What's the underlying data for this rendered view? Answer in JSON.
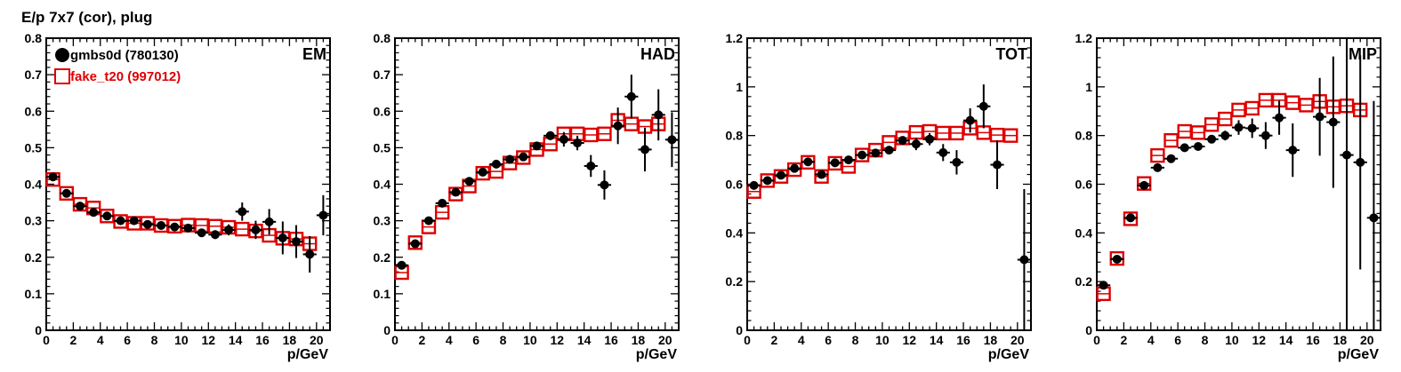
{
  "chart_data": [
    {
      "type": "scatter",
      "title": "E/p 7x7 (cor), plug",
      "panel_label": "EM",
      "xlabel": "p/GeV",
      "xlim": [
        0,
        21
      ],
      "ylim": [
        0,
        0.8
      ],
      "yticks": [
        0,
        0.1,
        0.2,
        0.3,
        0.4,
        0.5,
        0.6,
        0.7,
        0.8
      ],
      "ytick_labels": [
        "0",
        "0.1",
        "0.2",
        "0.3",
        "0.4",
        "0.5",
        "0.6",
        "0.7",
        "0.8"
      ],
      "legend": [
        "gmbs0d (780130)",
        "fake_t20 (997012)"
      ],
      "series": [
        {
          "name": "gmbs0d (780130)",
          "color": "#000000",
          "marker": "circle",
          "x": [
            0.5,
            1.5,
            2.5,
            3.5,
            4.5,
            5.5,
            6.5,
            7.5,
            8.5,
            9.5,
            10.5,
            11.5,
            12.5,
            13.5,
            14.5,
            15.5,
            16.5,
            17.5,
            18.5,
            19.5,
            20.5
          ],
          "y": [
            0.42,
            0.375,
            0.34,
            0.323,
            0.313,
            0.3,
            0.3,
            0.29,
            0.287,
            0.283,
            0.28,
            0.267,
            0.262,
            0.275,
            0.325,
            0.275,
            0.297,
            0.253,
            0.243,
            0.208,
            0.315
          ],
          "yerr": [
            0.005,
            0.005,
            0.005,
            0.005,
            0.005,
            0.005,
            0.005,
            0.006,
            0.007,
            0.008,
            0.009,
            0.01,
            0.012,
            0.015,
            0.025,
            0.025,
            0.035,
            0.045,
            0.045,
            0.05,
            0.055
          ]
        },
        {
          "name": "fake_t20 (997012)",
          "color": "#dd0000",
          "marker": "open-square",
          "x": [
            0.5,
            1.5,
            2.5,
            3.5,
            4.5,
            5.5,
            6.5,
            7.5,
            8.5,
            9.5,
            10.5,
            11.5,
            12.5,
            13.5,
            14.5,
            15.5,
            16.5,
            17.5,
            18.5,
            19.5
          ],
          "y": [
            0.413,
            0.375,
            0.345,
            0.335,
            0.313,
            0.298,
            0.293,
            0.293,
            0.287,
            0.285,
            0.288,
            0.287,
            0.285,
            0.282,
            0.277,
            0.272,
            0.26,
            0.252,
            0.25,
            0.237
          ]
        }
      ]
    },
    {
      "type": "scatter",
      "panel_label": "HAD",
      "xlabel": "p/GeV",
      "xlim": [
        0,
        21
      ],
      "ylim": [
        0,
        0.8
      ],
      "yticks": [
        0,
        0.1,
        0.2,
        0.3,
        0.4,
        0.5,
        0.6,
        0.7,
        0.8
      ],
      "ytick_labels": [
        "0",
        "0.1",
        "0.2",
        "0.3",
        "0.4",
        "0.5",
        "0.6",
        "0.7",
        "0.8"
      ],
      "series": [
        {
          "name": "gmbs0d (780130)",
          "color": "#000000",
          "marker": "circle",
          "x": [
            0.5,
            1.5,
            2.5,
            3.5,
            4.5,
            5.5,
            6.5,
            7.5,
            8.5,
            9.5,
            10.5,
            11.5,
            12.5,
            13.5,
            14.5,
            15.5,
            16.5,
            17.5,
            18.5,
            19.5,
            20.5
          ],
          "y": [
            0.178,
            0.237,
            0.3,
            0.348,
            0.378,
            0.408,
            0.433,
            0.455,
            0.468,
            0.475,
            0.505,
            0.533,
            0.523,
            0.513,
            0.45,
            0.398,
            0.56,
            0.64,
            0.495,
            0.59,
            0.522
          ],
          "yerr": [
            0.005,
            0.005,
            0.005,
            0.005,
            0.005,
            0.005,
            0.006,
            0.007,
            0.008,
            0.009,
            0.01,
            0.012,
            0.02,
            0.02,
            0.03,
            0.04,
            0.05,
            0.06,
            0.06,
            0.07,
            0.075
          ]
        },
        {
          "name": "fake_t20 (997012)",
          "color": "#dd0000",
          "marker": "open-square",
          "x": [
            0.5,
            1.5,
            2.5,
            3.5,
            4.5,
            5.5,
            6.5,
            7.5,
            8.5,
            9.5,
            10.5,
            11.5,
            12.5,
            13.5,
            14.5,
            15.5,
            16.5,
            17.5,
            18.5,
            19.5
          ],
          "y": [
            0.158,
            0.24,
            0.283,
            0.323,
            0.373,
            0.395,
            0.43,
            0.435,
            0.458,
            0.473,
            0.495,
            0.51,
            0.538,
            0.538,
            0.535,
            0.538,
            0.575,
            0.565,
            0.558,
            0.565
          ]
        }
      ]
    },
    {
      "type": "scatter",
      "panel_label": "TOT",
      "xlabel": "p/GeV",
      "xlim": [
        0,
        21
      ],
      "ylim": [
        0,
        1.2
      ],
      "yticks": [
        0,
        0.2,
        0.4,
        0.6,
        0.8,
        1.0,
        1.2
      ],
      "ytick_labels": [
        "0",
        "0.2",
        "0.4",
        "0.6",
        "0.8",
        "1",
        "1.2"
      ],
      "series": [
        {
          "name": "gmbs0d (780130)",
          "color": "#000000",
          "marker": "circle",
          "x": [
            0.5,
            1.5,
            2.5,
            3.5,
            4.5,
            5.5,
            6.5,
            7.5,
            8.5,
            9.5,
            10.5,
            11.5,
            12.5,
            13.5,
            14.5,
            15.5,
            16.5,
            17.5,
            18.5,
            19.5,
            20.5
          ],
          "y": [
            0.595,
            0.615,
            0.637,
            0.665,
            0.692,
            0.64,
            0.688,
            0.7,
            0.72,
            0.728,
            0.74,
            0.78,
            0.765,
            0.785,
            0.73,
            0.69,
            0.862,
            0.92,
            0.68,
            null,
            0.29
          ],
          "yerr": [
            0.01,
            0.008,
            0.008,
            0.008,
            0.008,
            0.008,
            0.008,
            0.008,
            0.01,
            0.01,
            0.012,
            0.015,
            0.025,
            0.025,
            0.035,
            0.05,
            0.05,
            0.09,
            0.1,
            0,
            0.29
          ]
        },
        {
          "name": "fake_t20 (997012)",
          "color": "#dd0000",
          "marker": "open-square",
          "x": [
            0.5,
            1.5,
            2.5,
            3.5,
            4.5,
            5.5,
            6.5,
            7.5,
            8.5,
            9.5,
            10.5,
            11.5,
            12.5,
            13.5,
            14.5,
            15.5,
            16.5,
            17.5,
            18.5,
            19.5
          ],
          "y": [
            0.57,
            0.615,
            0.632,
            0.66,
            0.69,
            0.632,
            0.686,
            0.673,
            0.72,
            0.74,
            0.772,
            0.79,
            0.813,
            0.817,
            0.81,
            0.81,
            0.83,
            0.812,
            0.802,
            0.8
          ]
        }
      ]
    },
    {
      "type": "scatter",
      "panel_label": "MIP",
      "xlabel": "p/GeV",
      "xlim": [
        0,
        21
      ],
      "ylim": [
        0,
        1.2
      ],
      "yticks": [
        0,
        0.2,
        0.4,
        0.6,
        0.8,
        1.0,
        1.2
      ],
      "ytick_labels": [
        "0",
        "0.2",
        "0.4",
        "0.6",
        "0.8",
        "1",
        "1.2"
      ],
      "series": [
        {
          "name": "gmbs0d (780130)",
          "color": "#000000",
          "marker": "circle",
          "x": [
            0.5,
            1.5,
            2.5,
            3.5,
            4.5,
            5.5,
            6.5,
            7.5,
            8.5,
            9.5,
            10.5,
            11.5,
            12.5,
            13.5,
            14.5,
            15.5,
            16.5,
            17.5,
            18.5,
            19.5,
            20.5
          ],
          "y": [
            0.185,
            0.292,
            0.462,
            0.595,
            0.668,
            0.705,
            0.75,
            0.755,
            0.785,
            0.8,
            0.833,
            0.83,
            0.8,
            0.873,
            0.74,
            null,
            0.877,
            0.855,
            0.72,
            0.69,
            0.462
          ],
          "yerr": [
            0.005,
            0.005,
            0.005,
            0.008,
            0.008,
            0.01,
            0.01,
            0.012,
            0.015,
            0.02,
            0.03,
            0.04,
            0.055,
            0.07,
            0.11,
            0,
            0.16,
            0.27,
            0.72,
            0.44,
            0.48
          ]
        },
        {
          "name": "fake_t20 (997012)",
          "color": "#dd0000",
          "marker": "open-square",
          "x": [
            0.5,
            1.5,
            2.5,
            3.5,
            4.5,
            5.5,
            6.5,
            7.5,
            8.5,
            9.5,
            10.5,
            11.5,
            12.5,
            13.5,
            14.5,
            15.5,
            16.5,
            17.5,
            18.5,
            19.5
          ],
          "y": [
            0.15,
            0.295,
            0.458,
            0.603,
            0.718,
            0.78,
            0.817,
            0.812,
            0.845,
            0.868,
            0.905,
            0.912,
            0.945,
            0.945,
            0.935,
            0.925,
            0.94,
            0.918,
            0.922,
            0.905
          ]
        }
      ]
    }
  ]
}
